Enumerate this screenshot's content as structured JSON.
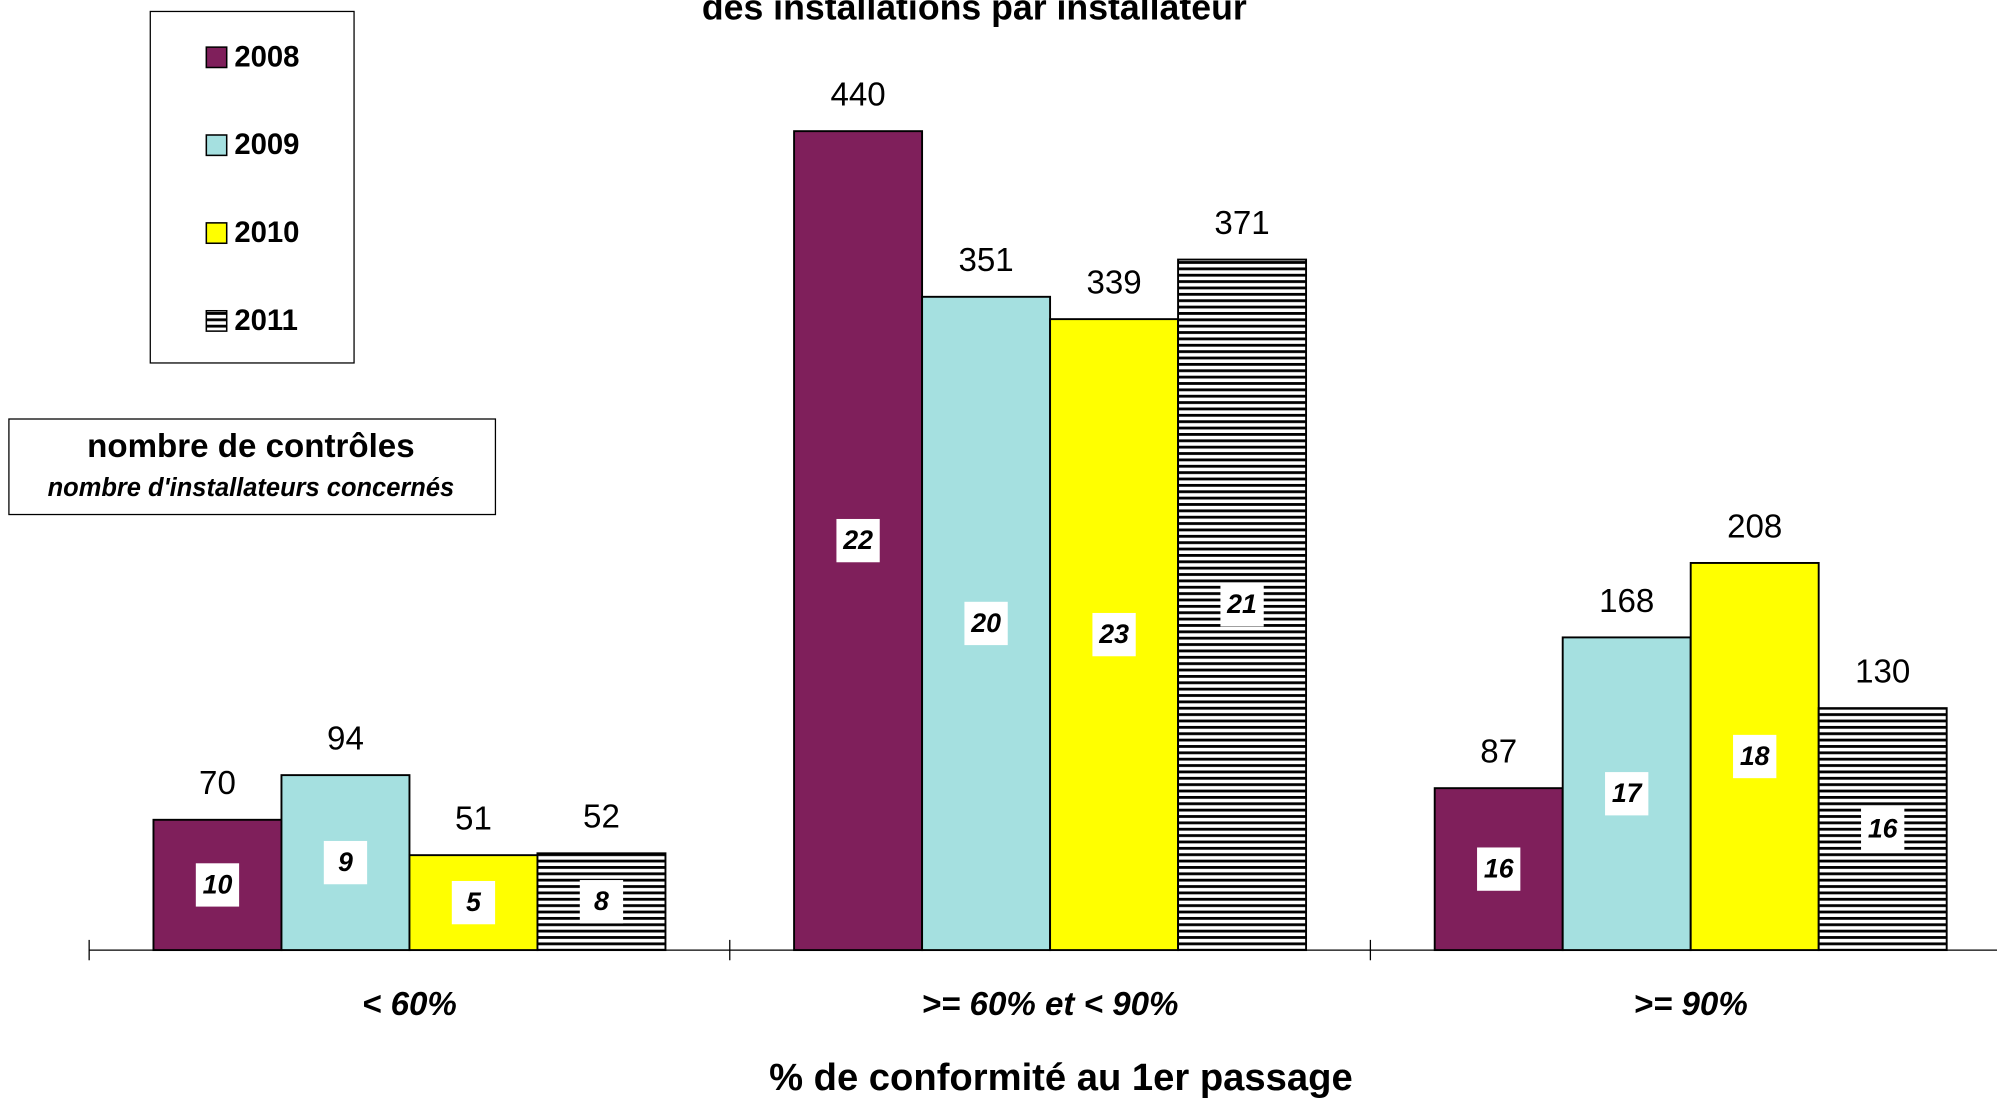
{
  "chart_data": {
    "type": "bar",
    "title": "des installations par installateur",
    "x_label": "% de conformité au 1er passage",
    "annotation": {
      "line1": "nombre de contrôles",
      "line2": "nombre d'installateurs concernés"
    },
    "categories": [
      "< 60%",
      ">= 60% et < 90%",
      ">= 90%"
    ],
    "series": [
      {
        "name": "2008",
        "color": "#7f1f5b",
        "values": [
          70,
          440,
          87
        ],
        "counts": [
          10,
          22,
          16
        ]
      },
      {
        "name": "2009",
        "color": "#a5e0e0",
        "values": [
          94,
          351,
          168
        ],
        "counts": [
          9,
          20,
          17
        ]
      },
      {
        "name": "2010",
        "color": "#ffff00",
        "values": [
          51,
          339,
          208
        ],
        "counts": [
          5,
          23,
          18
        ]
      },
      {
        "name": "2011",
        "color": "#ffffff",
        "hatch": true,
        "values": [
          52,
          371,
          130
        ],
        "counts": [
          8,
          21,
          16
        ]
      }
    ],
    "ylim": [
      0,
      500
    ]
  }
}
